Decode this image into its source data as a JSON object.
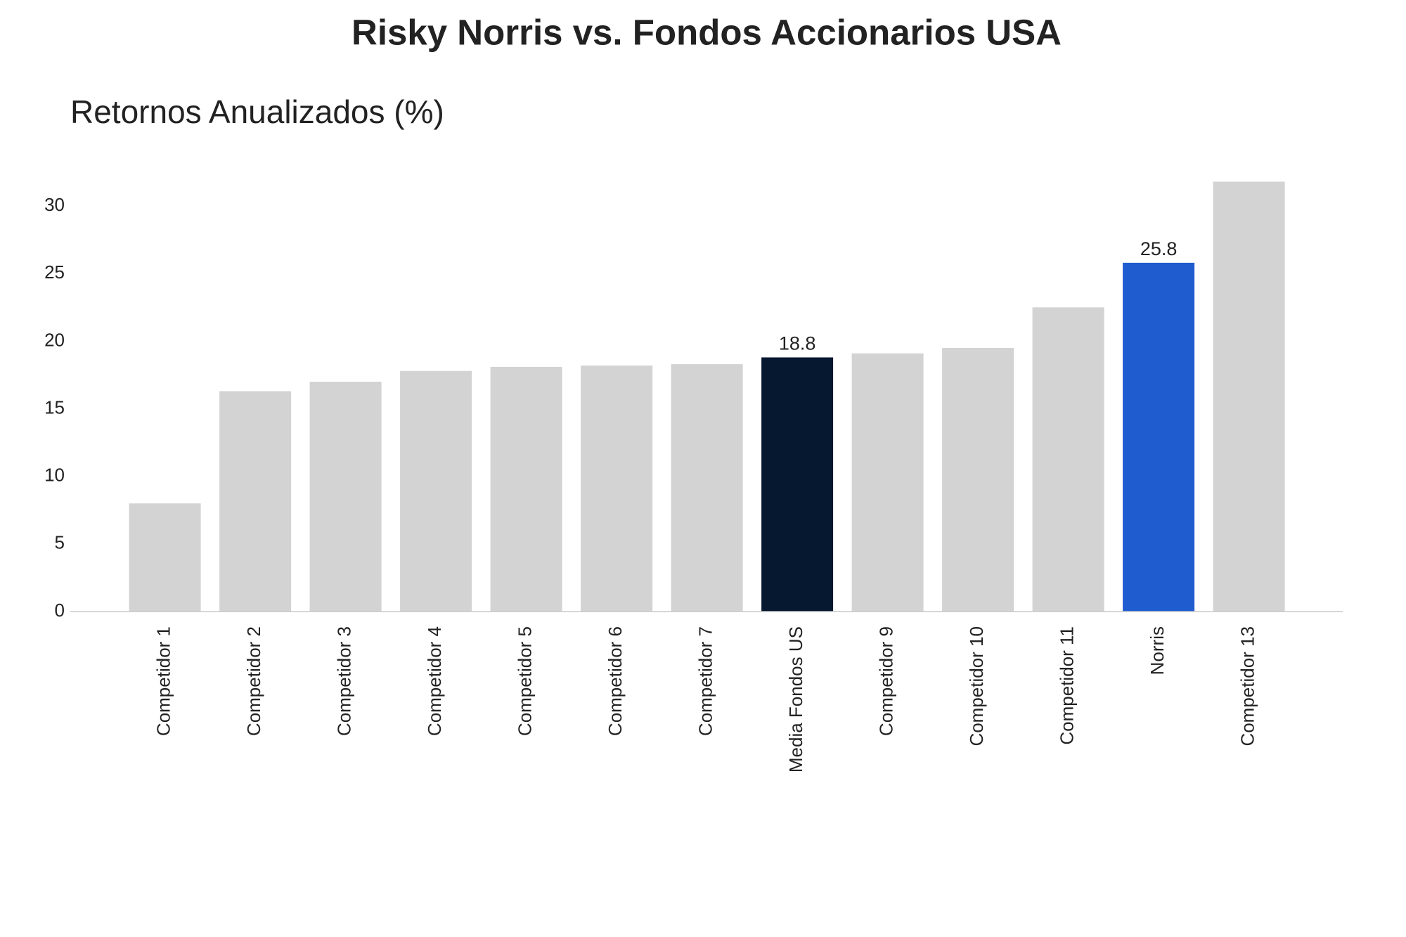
{
  "chart_data": {
    "type": "bar",
    "title": "Risky Norris vs. Fondos Accionarios USA",
    "subtitle": "Retornos Anualizados (%)",
    "categories": [
      "Competidor 1",
      "Competidor 2",
      "Competidor 3",
      "Competidor 4",
      "Competidor 5",
      "Competidor 6",
      "Competidor 7",
      "Media Fondos US",
      "Competidor 9",
      "Competidor 10",
      "Competidor 11",
      "Norris",
      "Competidor 13"
    ],
    "values": [
      8.0,
      16.3,
      17.0,
      17.8,
      18.1,
      18.2,
      18.3,
      18.8,
      19.1,
      19.5,
      22.5,
      25.8,
      31.8
    ],
    "value_labels": [
      null,
      null,
      null,
      null,
      null,
      null,
      null,
      "18.8",
      null,
      null,
      null,
      "25.8",
      null
    ],
    "colors": [
      "#d3d3d3",
      "#d3d3d3",
      "#d3d3d3",
      "#d3d3d3",
      "#d3d3d3",
      "#d3d3d3",
      "#d3d3d3",
      "#061730",
      "#d3d3d3",
      "#d3d3d3",
      "#d3d3d3",
      "#1f5ccf",
      "#d3d3d3"
    ],
    "ylim": [
      0,
      33.4
    ],
    "yticks": [
      0,
      5,
      10,
      15,
      20,
      25,
      30
    ],
    "grid": false
  }
}
